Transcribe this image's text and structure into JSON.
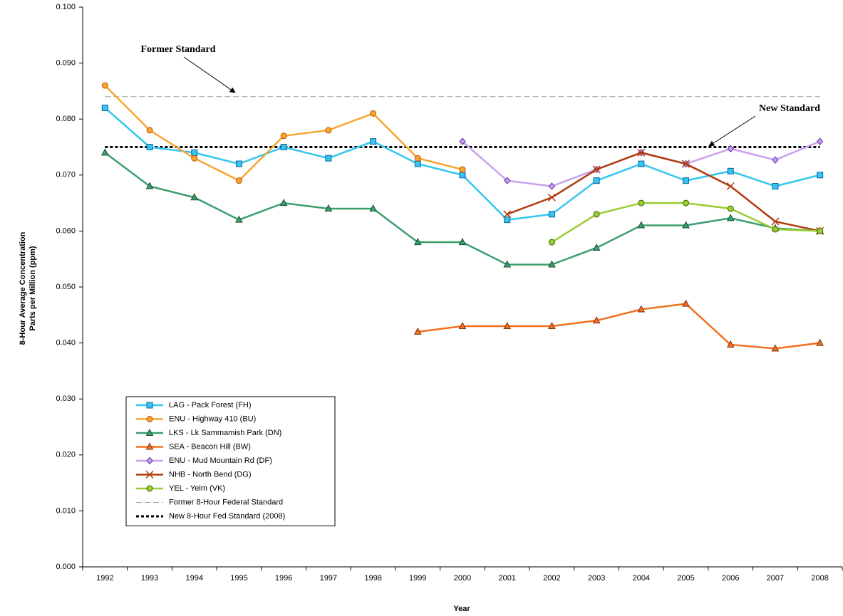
{
  "chart_data": {
    "type": "line",
    "y_label": [
      "8-Hour Average Concentration",
      "Parts per Million (ppm)"
    ],
    "x_label": "Year",
    "annotations": [
      "Former Standard",
      "New Standard"
    ],
    "categories": [
      "1992",
      "1993",
      "1994",
      "1995",
      "1996",
      "1997",
      "1998",
      "1999",
      "2000",
      "2001",
      "2002",
      "2003",
      "2004",
      "2005",
      "2006",
      "2007",
      "2008"
    ],
    "ylim": [
      0,
      0.1
    ],
    "yticks": [
      {
        "value": 0,
        "label": "0.000"
      },
      {
        "value": 0.01,
        "label": "0.010"
      },
      {
        "value": 0.02,
        "label": "0.020"
      },
      {
        "value": 0.03,
        "label": "0.030"
      },
      {
        "value": 0.04,
        "label": "0.040"
      },
      {
        "value": 0.05,
        "label": "0.050"
      },
      {
        "value": 0.06,
        "label": "0.060"
      },
      {
        "value": 0.07,
        "label": "0.070"
      },
      {
        "value": 0.08,
        "label": "0.080"
      },
      {
        "value": 0.09,
        "label": "0.090"
      },
      {
        "value": 0.1,
        "label": "0.100"
      }
    ],
    "series": [
      {
        "name": "LAG - Pack Forest (FH)",
        "color": "#33c6f0",
        "edge": "#1060a0",
        "marker": "square",
        "values": [
          0.082,
          0.075,
          0.074,
          0.072,
          0.075,
          0.073,
          0.076,
          0.072,
          0.07,
          0.062,
          0.063,
          0.069,
          0.072,
          0.069,
          0.0707,
          0.068,
          0.07
        ]
      },
      {
        "name": "ENU - Highway 410 (BU)",
        "color": "#f7a531",
        "edge": "#c05000",
        "marker": "circle",
        "values": [
          0.086,
          0.078,
          0.073,
          0.069,
          0.077,
          0.078,
          0.081,
          0.073,
          0.071,
          null,
          null,
          null,
          null,
          null,
          null,
          null,
          null
        ]
      },
      {
        "name": "LKS - Lk Sammamish Park (DN)",
        "color": "#3a9e6e",
        "edge": "#1a5030",
        "marker": "triangle",
        "values": [
          0.074,
          0.068,
          0.066,
          0.062,
          0.065,
          0.064,
          0.064,
          0.058,
          0.058,
          0.054,
          0.054,
          0.057,
          0.061,
          0.061,
          0.0623,
          0.0605,
          0.06
        ]
      },
      {
        "name": "SEA - Beacon Hill (BW)",
        "color": "#f07020",
        "edge": "#803010",
        "marker": "triangle",
        "values": [
          null,
          null,
          null,
          null,
          null,
          null,
          null,
          0.042,
          0.043,
          0.043,
          0.043,
          0.044,
          0.046,
          0.047,
          0.0397,
          0.039,
          0.04
        ]
      },
      {
        "name": "ENU - Mud Mountain Rd (DF)",
        "color": "#c9a0f0",
        "edge": "#6030a0",
        "marker": "diamond",
        "values": [
          null,
          null,
          null,
          null,
          null,
          null,
          null,
          null,
          0.076,
          0.069,
          0.068,
          0.071,
          0.074,
          0.072,
          0.0747,
          0.0727,
          0.076
        ]
      },
      {
        "name": "NHB - North Bend (DG)",
        "color": "#b03a0e",
        "edge": "#b03a0e",
        "marker": "x",
        "values": [
          null,
          null,
          null,
          null,
          null,
          null,
          null,
          null,
          null,
          0.063,
          0.066,
          0.071,
          0.074,
          0.072,
          0.068,
          0.0617,
          0.06
        ]
      },
      {
        "name": "YEL - Yelm (VK)",
        "color": "#9acd32",
        "edge": "#406000",
        "marker": "circle",
        "values": [
          null,
          null,
          null,
          null,
          null,
          null,
          null,
          null,
          null,
          null,
          0.058,
          0.063,
          0.065,
          0.065,
          0.064,
          0.0603,
          0.06
        ]
      }
    ],
    "reference_lines": [
      {
        "name": "Former 8-Hour Federal Standard",
        "value": 0.084,
        "color": "#a0a0a0",
        "style": "dashed"
      },
      {
        "name": "New 8-Hour Fed Standard (2008)",
        "value": 0.075,
        "color": "#000000",
        "style": "dotted"
      }
    ]
  }
}
